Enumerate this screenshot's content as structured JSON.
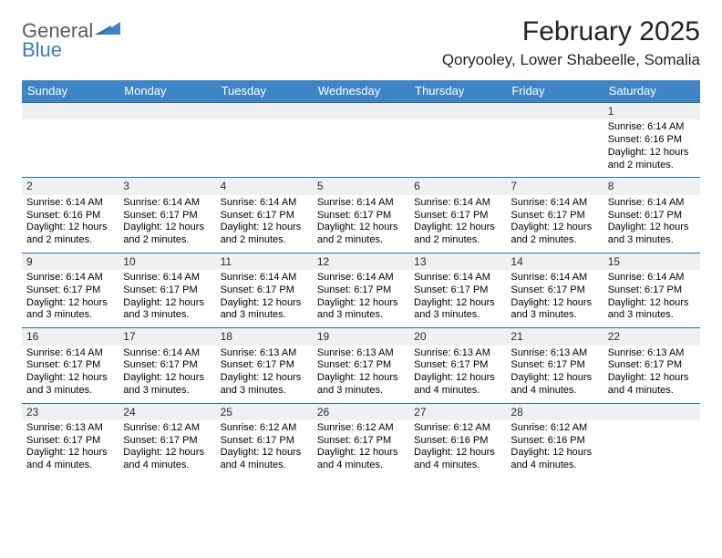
{
  "brand": {
    "name_top": "General",
    "name_bottom": "Blue",
    "text_color": "#5b5b5b",
    "accent_color": "#3a7abf"
  },
  "header": {
    "month_title": "February 2025",
    "location": "Qoryooley, Lower Shabeelle, Somalia",
    "title_fontsize": 30,
    "location_fontsize": 17
  },
  "styles": {
    "header_bg": "#3d85c6",
    "header_text": "#ffffff",
    "week_border_color": "#2f6aa0",
    "daynum_bg": "#eef0f1",
    "body_text_color": "#000000",
    "cell_fontsize": 11,
    "daynum_fontsize": 12
  },
  "weekdays": [
    "Sunday",
    "Monday",
    "Tuesday",
    "Wednesday",
    "Thursday",
    "Friday",
    "Saturday"
  ],
  "weeks": [
    [
      {
        "n": "",
        "sr": "",
        "ss": "",
        "dl": ""
      },
      {
        "n": "",
        "sr": "",
        "ss": "",
        "dl": ""
      },
      {
        "n": "",
        "sr": "",
        "ss": "",
        "dl": ""
      },
      {
        "n": "",
        "sr": "",
        "ss": "",
        "dl": ""
      },
      {
        "n": "",
        "sr": "",
        "ss": "",
        "dl": ""
      },
      {
        "n": "",
        "sr": "",
        "ss": "",
        "dl": ""
      },
      {
        "n": "1",
        "sr": "Sunrise: 6:14 AM",
        "ss": "Sunset: 6:16 PM",
        "dl": "Daylight: 12 hours and 2 minutes."
      }
    ],
    [
      {
        "n": "2",
        "sr": "Sunrise: 6:14 AM",
        "ss": "Sunset: 6:16 PM",
        "dl": "Daylight: 12 hours and 2 minutes."
      },
      {
        "n": "3",
        "sr": "Sunrise: 6:14 AM",
        "ss": "Sunset: 6:17 PM",
        "dl": "Daylight: 12 hours and 2 minutes."
      },
      {
        "n": "4",
        "sr": "Sunrise: 6:14 AM",
        "ss": "Sunset: 6:17 PM",
        "dl": "Daylight: 12 hours and 2 minutes."
      },
      {
        "n": "5",
        "sr": "Sunrise: 6:14 AM",
        "ss": "Sunset: 6:17 PM",
        "dl": "Daylight: 12 hours and 2 minutes."
      },
      {
        "n": "6",
        "sr": "Sunrise: 6:14 AM",
        "ss": "Sunset: 6:17 PM",
        "dl": "Daylight: 12 hours and 2 minutes."
      },
      {
        "n": "7",
        "sr": "Sunrise: 6:14 AM",
        "ss": "Sunset: 6:17 PM",
        "dl": "Daylight: 12 hours and 2 minutes."
      },
      {
        "n": "8",
        "sr": "Sunrise: 6:14 AM",
        "ss": "Sunset: 6:17 PM",
        "dl": "Daylight: 12 hours and 3 minutes."
      }
    ],
    [
      {
        "n": "9",
        "sr": "Sunrise: 6:14 AM",
        "ss": "Sunset: 6:17 PM",
        "dl": "Daylight: 12 hours and 3 minutes."
      },
      {
        "n": "10",
        "sr": "Sunrise: 6:14 AM",
        "ss": "Sunset: 6:17 PM",
        "dl": "Daylight: 12 hours and 3 minutes."
      },
      {
        "n": "11",
        "sr": "Sunrise: 6:14 AM",
        "ss": "Sunset: 6:17 PM",
        "dl": "Daylight: 12 hours and 3 minutes."
      },
      {
        "n": "12",
        "sr": "Sunrise: 6:14 AM",
        "ss": "Sunset: 6:17 PM",
        "dl": "Daylight: 12 hours and 3 minutes."
      },
      {
        "n": "13",
        "sr": "Sunrise: 6:14 AM",
        "ss": "Sunset: 6:17 PM",
        "dl": "Daylight: 12 hours and 3 minutes."
      },
      {
        "n": "14",
        "sr": "Sunrise: 6:14 AM",
        "ss": "Sunset: 6:17 PM",
        "dl": "Daylight: 12 hours and 3 minutes."
      },
      {
        "n": "15",
        "sr": "Sunrise: 6:14 AM",
        "ss": "Sunset: 6:17 PM",
        "dl": "Daylight: 12 hours and 3 minutes."
      }
    ],
    [
      {
        "n": "16",
        "sr": "Sunrise: 6:14 AM",
        "ss": "Sunset: 6:17 PM",
        "dl": "Daylight: 12 hours and 3 minutes."
      },
      {
        "n": "17",
        "sr": "Sunrise: 6:14 AM",
        "ss": "Sunset: 6:17 PM",
        "dl": "Daylight: 12 hours and 3 minutes."
      },
      {
        "n": "18",
        "sr": "Sunrise: 6:13 AM",
        "ss": "Sunset: 6:17 PM",
        "dl": "Daylight: 12 hours and 3 minutes."
      },
      {
        "n": "19",
        "sr": "Sunrise: 6:13 AM",
        "ss": "Sunset: 6:17 PM",
        "dl": "Daylight: 12 hours and 3 minutes."
      },
      {
        "n": "20",
        "sr": "Sunrise: 6:13 AM",
        "ss": "Sunset: 6:17 PM",
        "dl": "Daylight: 12 hours and 4 minutes."
      },
      {
        "n": "21",
        "sr": "Sunrise: 6:13 AM",
        "ss": "Sunset: 6:17 PM",
        "dl": "Daylight: 12 hours and 4 minutes."
      },
      {
        "n": "22",
        "sr": "Sunrise: 6:13 AM",
        "ss": "Sunset: 6:17 PM",
        "dl": "Daylight: 12 hours and 4 minutes."
      }
    ],
    [
      {
        "n": "23",
        "sr": "Sunrise: 6:13 AM",
        "ss": "Sunset: 6:17 PM",
        "dl": "Daylight: 12 hours and 4 minutes."
      },
      {
        "n": "24",
        "sr": "Sunrise: 6:12 AM",
        "ss": "Sunset: 6:17 PM",
        "dl": "Daylight: 12 hours and 4 minutes."
      },
      {
        "n": "25",
        "sr": "Sunrise: 6:12 AM",
        "ss": "Sunset: 6:17 PM",
        "dl": "Daylight: 12 hours and 4 minutes."
      },
      {
        "n": "26",
        "sr": "Sunrise: 6:12 AM",
        "ss": "Sunset: 6:17 PM",
        "dl": "Daylight: 12 hours and 4 minutes."
      },
      {
        "n": "27",
        "sr": "Sunrise: 6:12 AM",
        "ss": "Sunset: 6:16 PM",
        "dl": "Daylight: 12 hours and 4 minutes."
      },
      {
        "n": "28",
        "sr": "Sunrise: 6:12 AM",
        "ss": "Sunset: 6:16 PM",
        "dl": "Daylight: 12 hours and 4 minutes."
      },
      {
        "n": "",
        "sr": "",
        "ss": "",
        "dl": ""
      }
    ]
  ]
}
